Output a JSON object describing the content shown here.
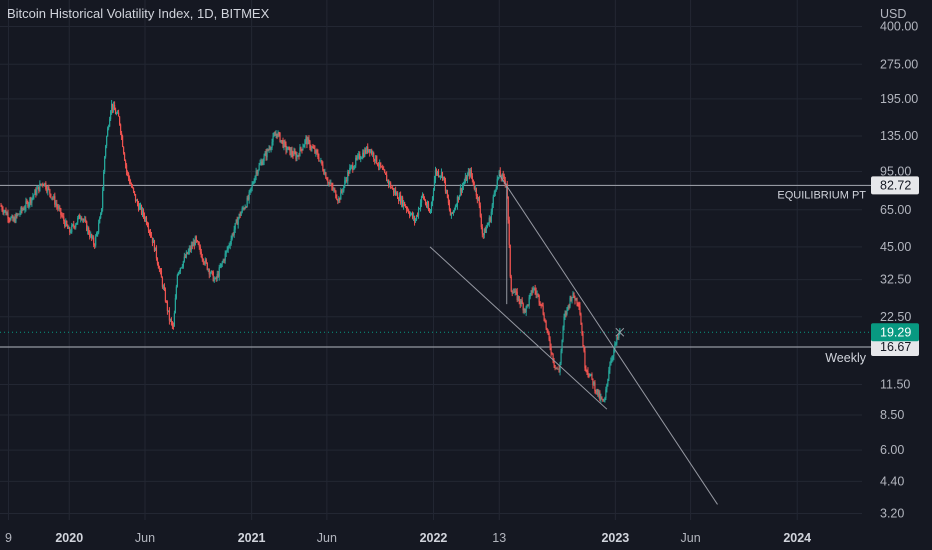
{
  "header": {
    "title": "Bitcoin Historical Volatility Index, 1D, BITMEX"
  },
  "colors": {
    "background": "#151822",
    "up_candle": "#26a69a",
    "down_candle": "#ef5350",
    "grid": "#232733",
    "level_line": "#9598a1",
    "last_price_tag": "#089981",
    "level_tag": "#d1d4dc"
  },
  "chart_data": {
    "type": "candlestick",
    "title": "Bitcoin Historical Volatility Index, 1D, BITMEX",
    "y_scale": "log",
    "currency_label": "USD",
    "y_ticks": [
      400.0,
      275.0,
      195.0,
      135.0,
      95.0,
      65.0,
      45.0,
      32.5,
      22.5,
      11.5,
      8.5,
      6.0,
      4.4,
      3.2
    ],
    "y_tick_labels": [
      "400.00",
      "275.00",
      "195.00",
      "135.00",
      "95.00",
      "65.00",
      "45.00",
      "32.50",
      "22.50",
      "11.50",
      "8.50",
      "6.00",
      "4.40",
      "3.20"
    ],
    "x_ticks": [
      {
        "label": "9",
        "date": "2019-09-01",
        "bold": false
      },
      {
        "label": "2020",
        "date": "2020-01-01",
        "bold": true
      },
      {
        "label": "Jun",
        "date": "2020-06-01",
        "bold": false
      },
      {
        "label": "2021",
        "date": "2021-01-01",
        "bold": true
      },
      {
        "label": "Jun",
        "date": "2021-06-01",
        "bold": false
      },
      {
        "label": "2022",
        "date": "2022-01-01",
        "bold": true
      },
      {
        "label": "13",
        "date": "2022-05-13",
        "bold": false
      },
      {
        "label": "2023",
        "date": "2023-01-01",
        "bold": true
      },
      {
        "label": "Jun",
        "date": "2023-06-01",
        "bold": false
      },
      {
        "label": "2024",
        "date": "2024-01-01",
        "bold": true
      }
    ],
    "x_range": [
      "2019-08-15",
      "2024-05-10"
    ],
    "y_range": [
      3.0,
      520.0
    ],
    "grid": true,
    "price_path": [
      [
        "2019-08-15",
        68
      ],
      [
        "2019-09-10",
        58
      ],
      [
        "2019-10-15",
        72
      ],
      [
        "2019-11-10",
        86
      ],
      [
        "2019-12-01",
        72
      ],
      [
        "2020-01-01",
        52
      ],
      [
        "2020-01-25",
        62
      ],
      [
        "2020-02-20",
        46
      ],
      [
        "2020-03-05",
        62
      ],
      [
        "2020-03-13",
        120
      ],
      [
        "2020-03-25",
        185
      ],
      [
        "2020-04-10",
        160
      ],
      [
        "2020-04-25",
        95
      ],
      [
        "2020-05-15",
        70
      ],
      [
        "2020-06-05",
        58
      ],
      [
        "2020-06-20",
        45
      ],
      [
        "2020-07-05",
        32
      ],
      [
        "2020-07-20",
        22
      ],
      [
        "2020-07-28",
        20
      ],
      [
        "2020-08-05",
        35
      ],
      [
        "2020-08-25",
        42
      ],
      [
        "2020-09-10",
        48
      ],
      [
        "2020-10-01",
        38
      ],
      [
        "2020-10-20",
        32
      ],
      [
        "2020-11-10",
        42
      ],
      [
        "2020-12-05",
        60
      ],
      [
        "2020-12-25",
        72
      ],
      [
        "2021-01-10",
        95
      ],
      [
        "2021-02-01",
        115
      ],
      [
        "2021-02-20",
        140
      ],
      [
        "2021-03-10",
        120
      ],
      [
        "2021-04-01",
        110
      ],
      [
        "2021-04-20",
        130
      ],
      [
        "2021-05-15",
        110
      ],
      [
        "2021-06-05",
        85
      ],
      [
        "2021-06-25",
        72
      ],
      [
        "2021-07-15",
        95
      ],
      [
        "2021-08-05",
        110
      ],
      [
        "2021-08-25",
        120
      ],
      [
        "2021-09-15",
        100
      ],
      [
        "2021-10-10",
        80
      ],
      [
        "2021-11-05",
        68
      ],
      [
        "2021-11-25",
        58
      ],
      [
        "2021-12-10",
        75
      ],
      [
        "2021-12-25",
        62
      ],
      [
        "2022-01-05",
        95
      ],
      [
        "2022-01-20",
        92
      ],
      [
        "2022-02-05",
        60
      ],
      [
        "2022-02-25",
        80
      ],
      [
        "2022-03-15",
        95
      ],
      [
        "2022-04-01",
        72
      ],
      [
        "2022-04-10",
        50
      ],
      [
        "2022-04-25",
        60
      ],
      [
        "2022-05-05",
        82
      ],
      [
        "2022-05-13",
        92
      ],
      [
        "2022-05-28",
        85
      ],
      [
        "2022-06-05",
        30
      ],
      [
        "2022-06-20",
        27
      ],
      [
        "2022-07-05",
        24
      ],
      [
        "2022-07-20",
        30
      ],
      [
        "2022-08-05",
        26
      ],
      [
        "2022-08-20",
        18
      ],
      [
        "2022-09-01",
        14
      ],
      [
        "2022-09-10",
        13
      ],
      [
        "2022-09-20",
        22
      ],
      [
        "2022-10-05",
        28
      ],
      [
        "2022-10-20",
        26
      ],
      [
        "2022-11-01",
        14
      ],
      [
        "2022-11-15",
        12
      ],
      [
        "2022-12-01",
        10
      ],
      [
        "2022-12-10",
        9.5
      ],
      [
        "2022-12-20",
        14
      ],
      [
        "2023-01-01",
        17
      ],
      [
        "2023-01-10",
        19.29
      ]
    ],
    "levels": [
      {
        "label": "EQUILIBRIUM PT",
        "value": 82.72,
        "value_label": "82.72"
      },
      {
        "label": "Weekly",
        "value": 16.67,
        "value_label": "16.67"
      }
    ],
    "last_value": {
      "value": 19.29,
      "label": "19.29"
    },
    "trendlines": [
      {
        "from": [
          "2022-05-13",
          92
        ],
        "to": [
          "2023-07-25",
          3.5
        ]
      },
      {
        "from": [
          "2021-12-25",
          45
        ],
        "to": [
          "2022-12-15",
          9
        ]
      },
      {
        "from": [
          "2022-05-28",
          25.5
        ],
        "to": [
          "2022-05-28",
          82
        ]
      }
    ]
  }
}
